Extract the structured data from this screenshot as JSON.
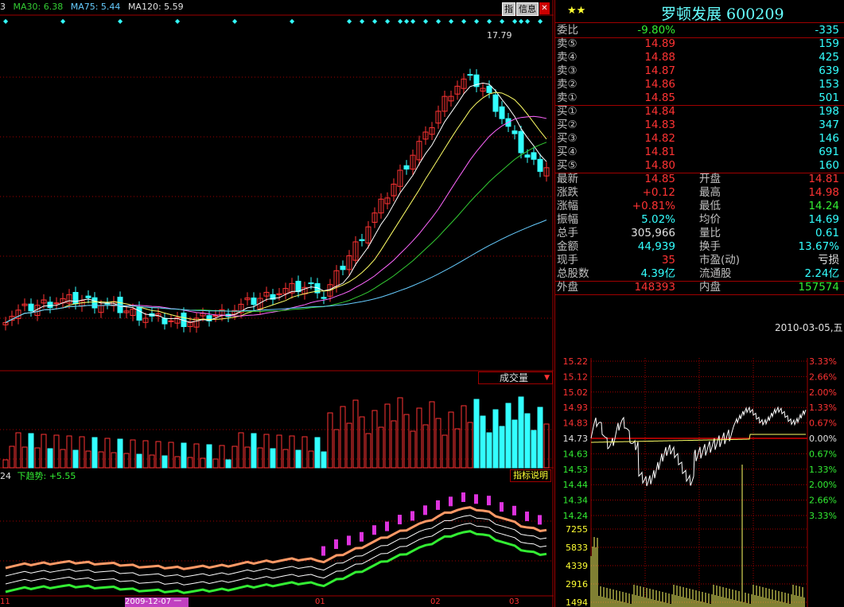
{
  "header": {
    "prefix": "3",
    "ma30": "MA30: 6.38",
    "ma75": "MA75: 5.44",
    "ma120": "MA120: 5.59",
    "btn_zhi": "指",
    "btn_info": "信息",
    "peak_label": "17.79"
  },
  "volume_panel": {
    "label": "成交量",
    "dropdown_icon": "triangle-down-icon"
  },
  "indicator_panel": {
    "prefix": "24",
    "trend_label": "下趋势: +5.55",
    "explain_btn": "指标说明"
  },
  "xaxis": {
    "left_tick": "11",
    "date_box": "2009-12-07 一",
    "m1": "01",
    "m2": "02",
    "m3": "03"
  },
  "quote": {
    "stars": "★★",
    "name_code": "罗顿发展 600209",
    "weibi": {
      "label": "委比",
      "v1": "-9.80%",
      "v2": "-335"
    },
    "asks": [
      {
        "label": "卖⑤",
        "price": "14.89",
        "vol": "159"
      },
      {
        "label": "卖④",
        "price": "14.88",
        "vol": "425"
      },
      {
        "label": "卖③",
        "price": "14.87",
        "vol": "639"
      },
      {
        "label": "卖②",
        "price": "14.86",
        "vol": "153"
      },
      {
        "label": "卖①",
        "price": "14.85",
        "vol": "501"
      }
    ],
    "bids": [
      {
        "label": "买①",
        "price": "14.84",
        "vol": "198"
      },
      {
        "label": "买②",
        "price": "14.83",
        "vol": "347"
      },
      {
        "label": "买③",
        "price": "14.82",
        "vol": "146"
      },
      {
        "label": "买④",
        "price": "14.81",
        "vol": "691"
      },
      {
        "label": "买⑤",
        "price": "14.80",
        "vol": "160"
      }
    ],
    "stats": [
      {
        "l1": "最新",
        "v1": "14.85",
        "l2": "开盘",
        "v2": "14.81"
      },
      {
        "l1": "涨跌",
        "v1": "+0.12",
        "l2": "最高",
        "v2": "14.98"
      },
      {
        "l1": "涨幅",
        "v1": "+0.81%",
        "l2": "最低",
        "v2": "14.24"
      },
      {
        "l1": "振幅",
        "v1": "5.02%",
        "l2": "均价",
        "v2": "14.69"
      },
      {
        "l1": "总手",
        "v1": "305,966",
        "l2": "量比",
        "v2": "0.61"
      },
      {
        "l1": "金额",
        "v1": "44,939",
        "l2": "换手",
        "v2": "13.67%"
      },
      {
        "l1": "现手",
        "v1": "35",
        "l2": "市盈(动)",
        "v2": "亏损"
      },
      {
        "l1": "总股数",
        "v1": "4.39亿",
        "l2": "流通股",
        "v2": "2.24亿"
      }
    ],
    "outer": {
      "l1": "外盘",
      "v1": "148393",
      "l2": "内盘",
      "v2": "157574"
    }
  },
  "intraday": {
    "date": "2010-03-05,五",
    "prices": [
      "15.22",
      "15.12",
      "15.02",
      "14.93",
      "14.83",
      "14.73",
      "14.63",
      "14.53",
      "14.44",
      "14.34",
      "14.24"
    ],
    "pcts": [
      "3.33%",
      "2.66%",
      "2.00%",
      "1.33%",
      "0.67%",
      "0.00%",
      "0.67%",
      "1.33%",
      "2.00%",
      "2.66%",
      "3.33%"
    ],
    "vols": [
      "7255",
      "5833",
      "4339",
      "2916",
      "1494"
    ]
  },
  "colors": {
    "up": "#ff3333",
    "down": "#33ffff",
    "grid": "#a00000",
    "ma5": "#ffffff",
    "ma10": "#ffff00",
    "ma20": "#ff66ff",
    "ma30": "#33cc33"
  }
}
